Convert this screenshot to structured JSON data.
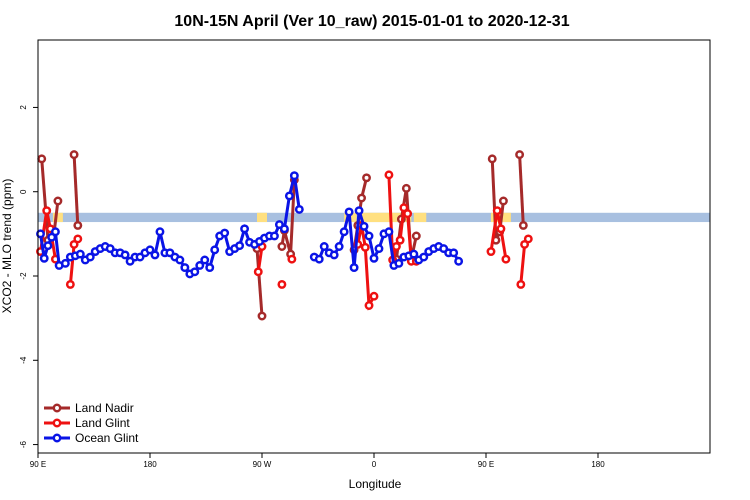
{
  "chart_data": {
    "type": "line",
    "title": "10N-15N April (Ver 10_raw)   2015-01-01 to 2020-12-31",
    "xlabel": "Longitude",
    "ylabel": "XCO2 - MLO trend (ppm)",
    "xlim": [
      -90,
      180
    ],
    "ylim": [
      -6.2,
      3.6
    ],
    "x_ticks": [
      {
        "value": -90,
        "label": "90 E"
      },
      {
        "value": -45,
        "label": "180"
      },
      {
        "value": 0,
        "label": "90 W"
      },
      {
        "value": 45,
        "label": "0"
      },
      {
        "value": 90,
        "label": "90 E"
      },
      {
        "value": 135,
        "label": "180"
      }
    ],
    "y_ticks": [
      {
        "value": -6,
        "label": "-6"
      },
      {
        "value": -4,
        "label": "-4"
      },
      {
        "value": -2,
        "label": "-2"
      },
      {
        "value": 0,
        "label": "0"
      },
      {
        "value": 2,
        "label": "2"
      }
    ],
    "grid": false,
    "legend_position": "bottom-left",
    "band": {
      "color": "#a8c0e0",
      "y_low": -0.72,
      "y_high": -0.5,
      "highlight_color": "#ffe080",
      "highlight_ranges": [
        [
          -84,
          -80
        ],
        [
          -2,
          2
        ],
        [
          33,
          38
        ],
        [
          39,
          60
        ],
        [
          61,
          66
        ],
        [
          92,
          100
        ]
      ]
    },
    "series": [
      {
        "name": "Land Nadir",
        "color": "#a52a2a",
        "segments": [
          [
            [
              -88.5,
              0.78
            ],
            [
              -86,
              -1.15
            ],
            [
              -83.5,
              -0.95
            ],
            [
              -82,
              -0.22
            ]
          ],
          [
            [
              -75.5,
              0.88
            ],
            [
              -74,
              -0.8
            ]
          ],
          [
            [
              -2,
              -1.35
            ],
            [
              0,
              -2.95
            ]
          ],
          [
            [
              8,
              -1.3
            ],
            [
              9,
              -0.92
            ],
            [
              11.5,
              -1.48
            ],
            [
              13,
              0.28
            ]
          ],
          [
            [
              37,
              -1.38
            ],
            [
              38.5,
              -0.8
            ],
            [
              40,
              -0.15
            ],
            [
              42,
              0.33
            ]
          ],
          [
            [
              54,
              -1.6
            ],
            [
              56,
              -0.65
            ],
            [
              58,
              0.08
            ],
            [
              60,
              -1.6
            ],
            [
              62,
              -1.05
            ]
          ],
          [
            [
              92.5,
              0.78
            ],
            [
              94,
              -1.15
            ],
            [
              95.5,
              -0.95
            ],
            [
              97,
              -0.22
            ]
          ],
          [
            [
              103.5,
              0.88
            ],
            [
              105,
              -0.8
            ]
          ]
        ]
      },
      {
        "name": "Land Glint",
        "color": "#ee1111",
        "segments": [
          [
            [
              -89,
              -1.42
            ],
            [
              -86.5,
              -0.45
            ],
            [
              -85,
              -0.88
            ],
            [
              -83,
              -1.6
            ]
          ],
          [
            [
              -77,
              -2.2
            ],
            [
              -75.5,
              -1.25
            ],
            [
              -74,
              -1.12
            ]
          ],
          [
            [
              -1.5,
              -1.9
            ],
            [
              0,
              -1.3
            ]
          ],
          [
            [
              8,
              -2.2
            ]
          ],
          [
            [
              12,
              -1.6
            ]
          ],
          [
            [
              38.5,
              -1.25
            ],
            [
              40,
              -0.8
            ],
            [
              41.5,
              -1.32
            ],
            [
              43,
              -2.7
            ],
            [
              45,
              -2.48
            ]
          ],
          [
            [
              51,
              0.4
            ],
            [
              52.5,
              -1.62
            ],
            [
              54,
              -1.3
            ],
            [
              55.5,
              -1.15
            ],
            [
              57,
              -0.38
            ],
            [
              58.5,
              -0.52
            ],
            [
              60,
              -1.65
            ],
            [
              62,
              -1.65
            ]
          ],
          [
            [
              92,
              -1.42
            ],
            [
              94.5,
              -0.45
            ],
            [
              96,
              -0.88
            ],
            [
              98,
              -1.6
            ]
          ],
          [
            [
              104,
              -2.2
            ],
            [
              105.5,
              -1.25
            ],
            [
              107,
              -1.12
            ]
          ]
        ]
      },
      {
        "name": "Ocean Glint",
        "color": "#0a14e6",
        "segments": [
          [
            [
              -89,
              -1
            ],
            [
              -87.5,
              -1.58
            ],
            [
              -86,
              -1.28
            ],
            [
              -84.5,
              -1.08
            ],
            [
              -83,
              -0.95
            ],
            [
              -81.5,
              -1.75
            ],
            [
              -79,
              -1.7
            ],
            [
              -77,
              -1.55
            ],
            [
              -75,
              -1.52
            ],
            [
              -73,
              -1.48
            ],
            [
              -71,
              -1.62
            ],
            [
              -69,
              -1.55
            ],
            [
              -67,
              -1.42
            ],
            [
              -65,
              -1.35
            ],
            [
              -63,
              -1.3
            ],
            [
              -61,
              -1.35
            ],
            [
              -59,
              -1.45
            ],
            [
              -57,
              -1.45
            ],
            [
              -55,
              -1.5
            ],
            [
              -53,
              -1.65
            ],
            [
              -51,
              -1.55
            ],
            [
              -49,
              -1.55
            ],
            [
              -47,
              -1.45
            ],
            [
              -45,
              -1.38
            ],
            [
              -43,
              -1.5
            ],
            [
              -41,
              -0.95
            ],
            [
              -39,
              -1.45
            ],
            [
              -37,
              -1.45
            ],
            [
              -35,
              -1.55
            ],
            [
              -33,
              -1.62
            ],
            [
              -31,
              -1.8
            ],
            [
              -29,
              -1.95
            ],
            [
              -27,
              -1.9
            ],
            [
              -25,
              -1.75
            ],
            [
              -23,
              -1.62
            ],
            [
              -21,
              -1.8
            ],
            [
              -19,
              -1.38
            ],
            [
              -17,
              -1.05
            ],
            [
              -15,
              -0.98
            ],
            [
              -13,
              -1.42
            ],
            [
              -11,
              -1.35
            ],
            [
              -9,
              -1.28
            ],
            [
              -7,
              -0.88
            ],
            [
              -5,
              -1.2
            ],
            [
              -3,
              -1.25
            ],
            [
              -1,
              -1.18
            ],
            [
              1,
              -1.1
            ],
            [
              3,
              -1.05
            ],
            [
              5,
              -1.05
            ],
            [
              7,
              -0.78
            ],
            [
              9,
              -0.88
            ],
            [
              11,
              -0.1
            ],
            [
              13,
              0.38
            ],
            [
              15,
              -0.42
            ]
          ],
          [
            [
              21,
              -1.55
            ],
            [
              23,
              -1.6
            ],
            [
              25,
              -1.3
            ],
            [
              27,
              -1.45
            ],
            [
              29,
              -1.5
            ],
            [
              31,
              -1.3
            ],
            [
              33,
              -0.95
            ],
            [
              35,
              -0.48
            ],
            [
              37,
              -1.8
            ],
            [
              39,
              -0.45
            ],
            [
              41,
              -0.82
            ],
            [
              43,
              -1.05
            ],
            [
              45,
              -1.58
            ],
            [
              47,
              -1.35
            ],
            [
              49,
              -1.0
            ],
            [
              51,
              -0.95
            ],
            [
              53,
              -1.75
            ],
            [
              55,
              -1.7
            ],
            [
              57,
              -1.55
            ],
            [
              59,
              -1.52
            ],
            [
              61,
              -1.48
            ],
            [
              63,
              -1.62
            ],
            [
              65,
              -1.55
            ],
            [
              67,
              -1.42
            ],
            [
              69,
              -1.35
            ],
            [
              71,
              -1.3
            ],
            [
              73,
              -1.35
            ],
            [
              75,
              -1.45
            ],
            [
              77,
              -1.45
            ],
            [
              79,
              -1.65
            ]
          ]
        ]
      }
    ]
  }
}
